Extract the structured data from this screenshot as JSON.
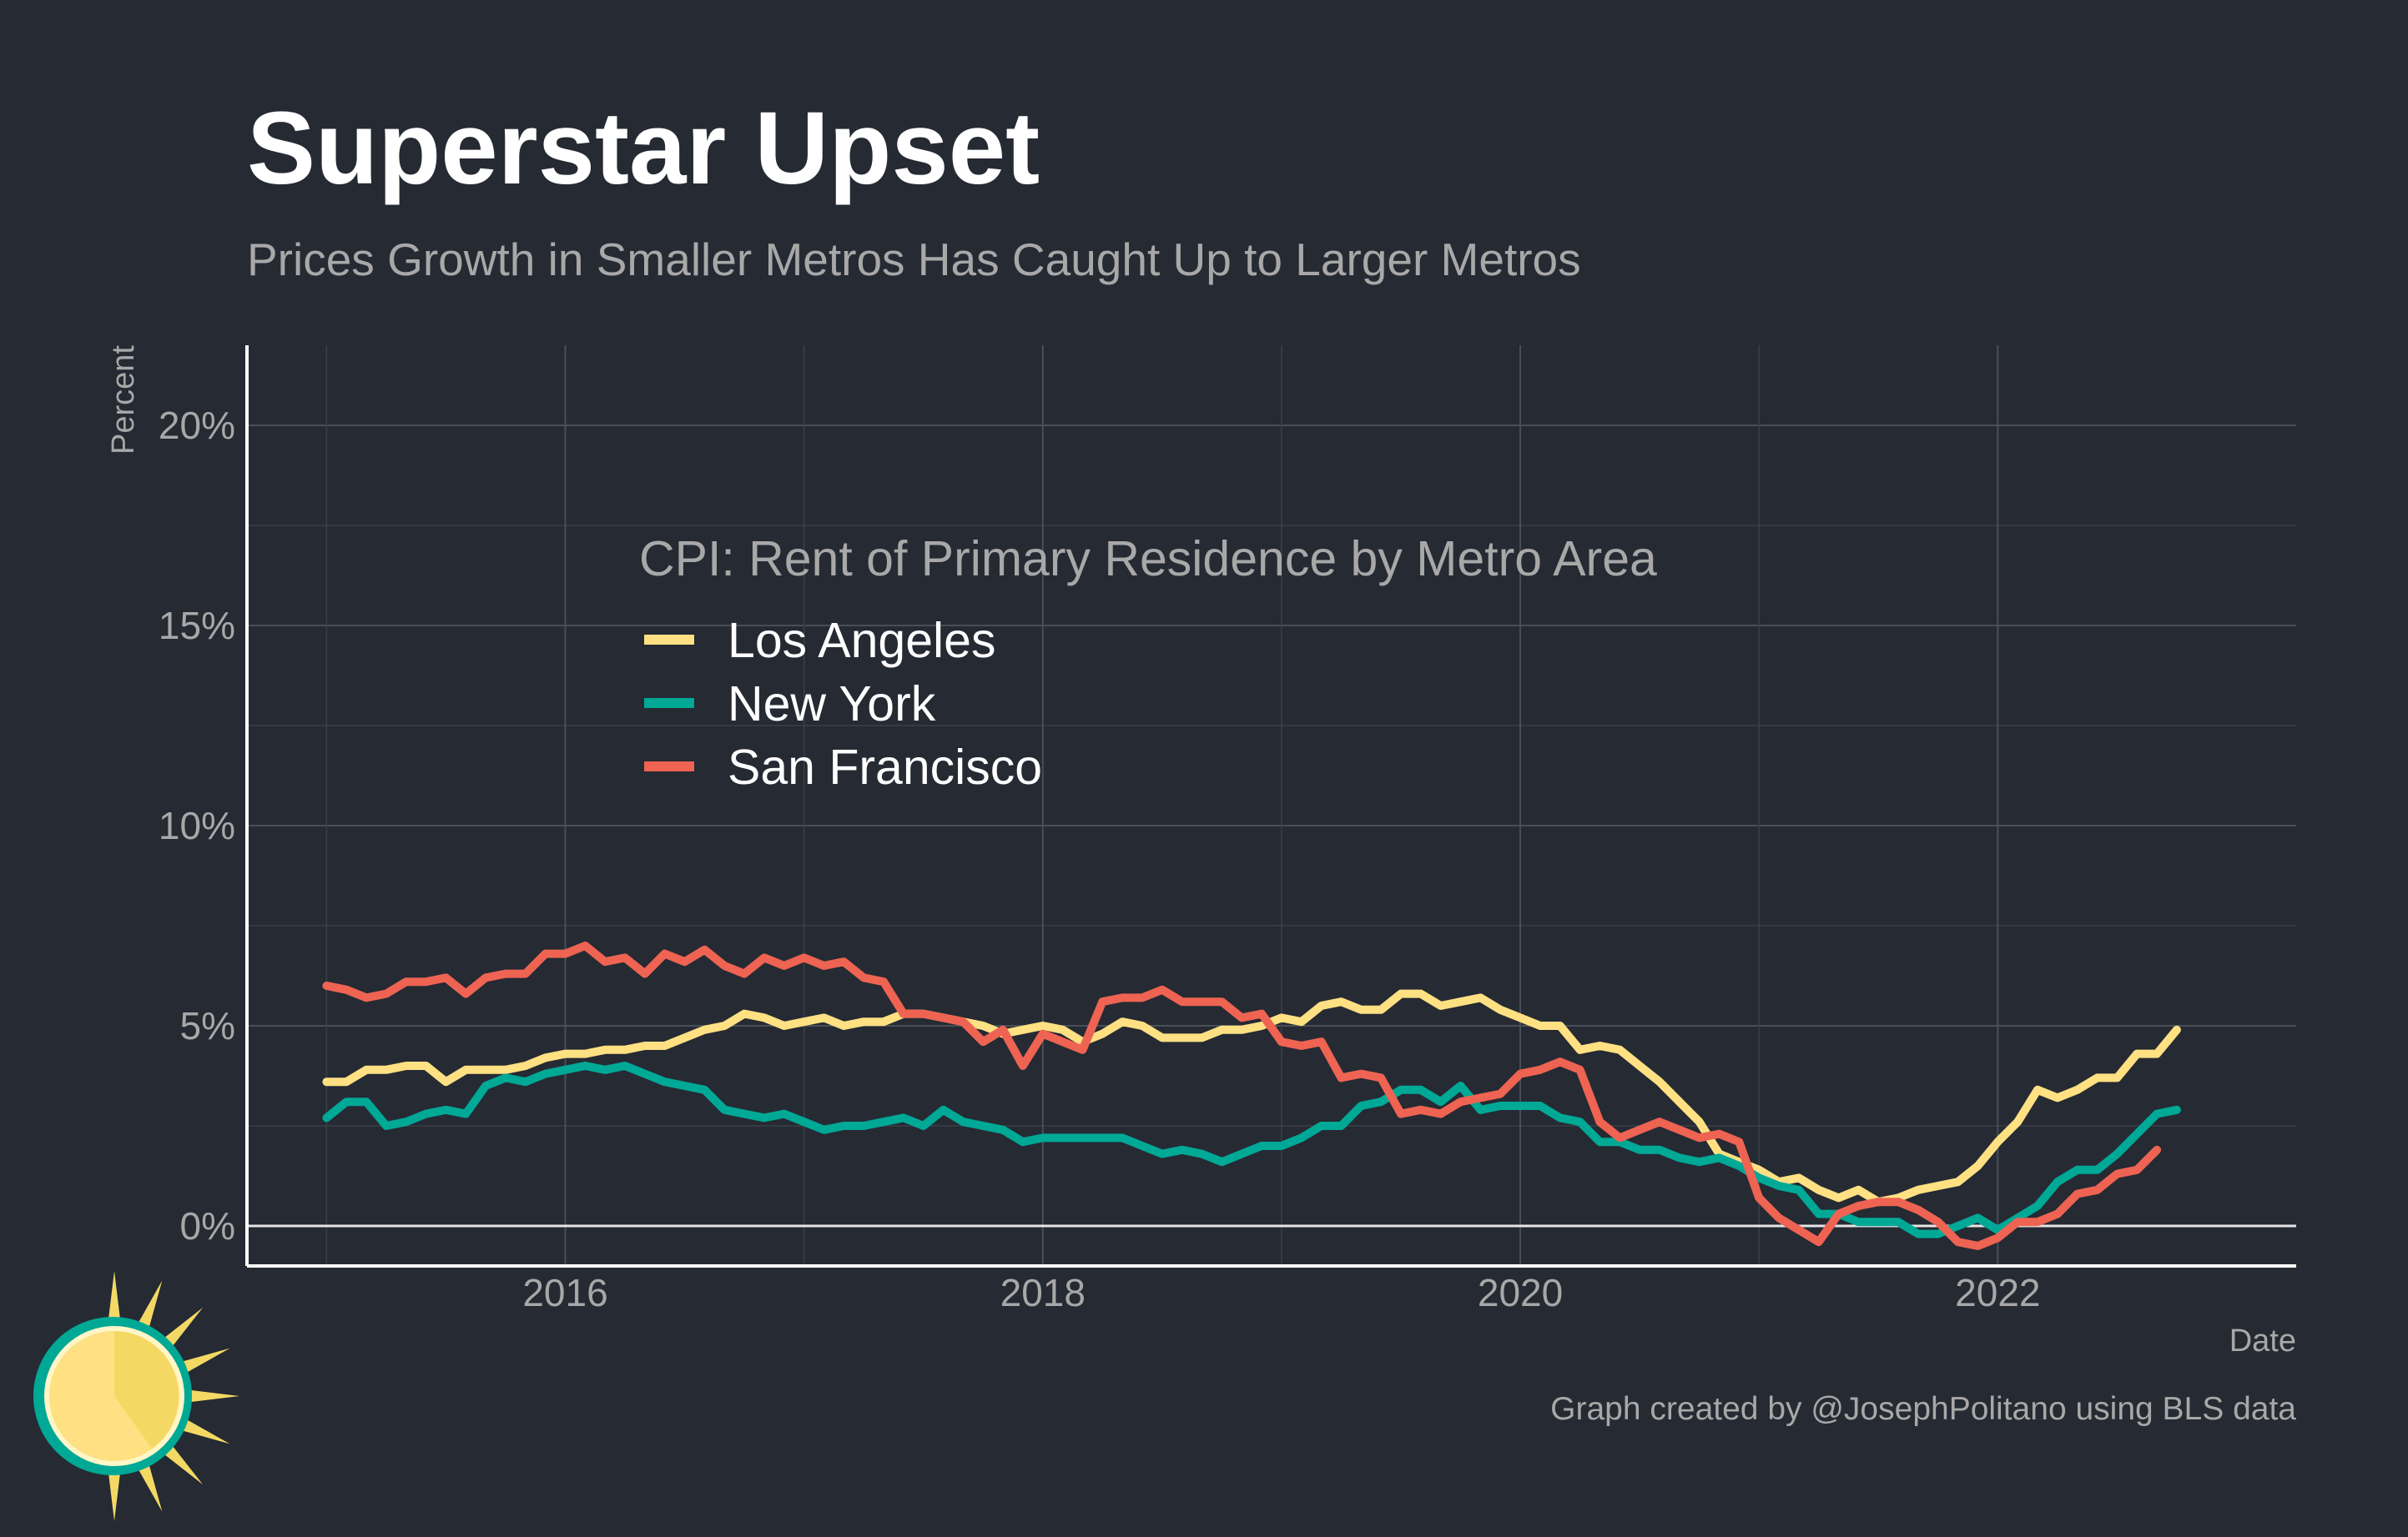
{
  "title": "Superstar Upset",
  "subtitle": "Prices Growth in Smaller Metros Has Caught Up to Larger Metros",
  "caption": "Graph created by @JosephPolitano using BLS data",
  "chart_data": {
    "type": "line",
    "xlabel": "Date",
    "ylabel": "Percent",
    "x_start": "2015-01",
    "x_frequency": "monthly",
    "xlim": [
      "2014-09",
      "2023-04"
    ],
    "ylim": [
      -1,
      22
    ],
    "x_ticks": [
      "2016",
      "2018",
      "2020",
      "2022"
    ],
    "y_ticks": [
      {
        "value": 0,
        "label": "0%"
      },
      {
        "value": 5,
        "label": "5%"
      },
      {
        "value": 10,
        "label": "10%"
      },
      {
        "value": 15,
        "label": "15%"
      },
      {
        "value": 20,
        "label": "20%"
      }
    ],
    "grid": true,
    "zero_line": true,
    "legend_title": "CPI: Rent of Primary Residence by Metro Area",
    "legend_position": "inside-top-left",
    "series": [
      {
        "name": "Los Angeles",
        "color": "#ffe082",
        "values": [
          3.6,
          3.6,
          3.9,
          3.9,
          4.0,
          4.0,
          3.6,
          3.9,
          3.9,
          3.9,
          4.0,
          4.2,
          4.3,
          4.3,
          4.4,
          4.4,
          4.5,
          4.5,
          4.7,
          4.9,
          5.0,
          5.3,
          5.2,
          5.0,
          5.1,
          5.2,
          5.0,
          5.1,
          5.1,
          5.3,
          5.3,
          5.2,
          5.1,
          5.0,
          4.8,
          4.9,
          5.0,
          4.9,
          4.6,
          4.8,
          5.1,
          5.0,
          4.7,
          4.7,
          4.7,
          4.9,
          4.9,
          5.0,
          5.2,
          5.1,
          5.5,
          5.6,
          5.4,
          5.4,
          5.8,
          5.8,
          5.5,
          5.6,
          5.7,
          5.4,
          5.2,
          5.0,
          5.0,
          4.4,
          4.5,
          4.4,
          4.0,
          3.6,
          3.1,
          2.6,
          1.8,
          1.6,
          1.4,
          1.1,
          1.2,
          0.9,
          0.7,
          0.9,
          0.6,
          0.7,
          0.9,
          1.0,
          1.1,
          1.5,
          2.1,
          2.6,
          3.4,
          3.2,
          3.4,
          3.7,
          3.7,
          4.3,
          4.3,
          4.9
        ]
      },
      {
        "name": "New York",
        "color": "#00a896",
        "values": [
          2.7,
          3.1,
          3.1,
          2.5,
          2.6,
          2.8,
          2.9,
          2.8,
          3.5,
          3.7,
          3.6,
          3.8,
          3.9,
          4.0,
          3.9,
          4.0,
          3.8,
          3.6,
          3.5,
          3.4,
          2.9,
          2.8,
          2.7,
          2.8,
          2.6,
          2.4,
          2.5,
          2.5,
          2.6,
          2.7,
          2.5,
          2.9,
          2.6,
          2.5,
          2.4,
          2.1,
          2.2,
          2.2,
          2.2,
          2.2,
          2.2,
          2.0,
          1.8,
          1.9,
          1.8,
          1.6,
          1.8,
          2.0,
          2.0,
          2.2,
          2.5,
          2.5,
          3.0,
          3.1,
          3.4,
          3.4,
          3.1,
          3.5,
          2.9,
          3.0,
          3.0,
          3.0,
          2.7,
          2.6,
          2.1,
          2.1,
          1.9,
          1.9,
          1.7,
          1.6,
          1.7,
          1.5,
          1.2,
          1.0,
          0.9,
          0.3,
          0.3,
          0.1,
          0.1,
          0.1,
          -0.2,
          -0.2,
          0.0,
          0.2,
          -0.1,
          0.2,
          0.5,
          1.1,
          1.4,
          1.4,
          1.8,
          2.3,
          2.8,
          2.9
        ]
      },
      {
        "name": "San Francisco",
        "color": "#ee6352",
        "values": [
          6.0,
          5.9,
          5.7,
          5.8,
          6.1,
          6.1,
          6.2,
          5.8,
          6.2,
          6.3,
          6.3,
          6.8,
          6.8,
          7.0,
          6.6,
          6.7,
          6.3,
          6.8,
          6.6,
          6.9,
          6.5,
          6.3,
          6.7,
          6.5,
          6.7,
          6.5,
          6.6,
          6.2,
          6.1,
          5.3,
          5.3,
          5.2,
          5.1,
          4.6,
          4.9,
          4.0,
          4.8,
          4.6,
          4.4,
          5.6,
          5.7,
          5.7,
          5.9,
          5.6,
          5.6,
          5.6,
          5.2,
          5.3,
          4.6,
          4.5,
          4.6,
          3.7,
          3.8,
          3.7,
          2.8,
          2.9,
          2.8,
          3.1,
          3.2,
          3.3,
          3.8,
          3.9,
          4.1,
          3.9,
          2.6,
          2.2,
          2.4,
          2.6,
          2.4,
          2.2,
          2.3,
          2.1,
          0.7,
          0.2,
          -0.1,
          -0.4,
          0.3,
          0.5,
          0.6,
          0.6,
          0.4,
          0.1,
          -0.4,
          -0.5,
          -0.3,
          0.1,
          0.1,
          0.3,
          0.8,
          0.9,
          1.3,
          1.4,
          1.9
        ]
      }
    ]
  },
  "logo": {
    "icon": "sun-logo-icon",
    "colors": [
      "#00a896",
      "#ffe082",
      "#f3d964"
    ]
  }
}
